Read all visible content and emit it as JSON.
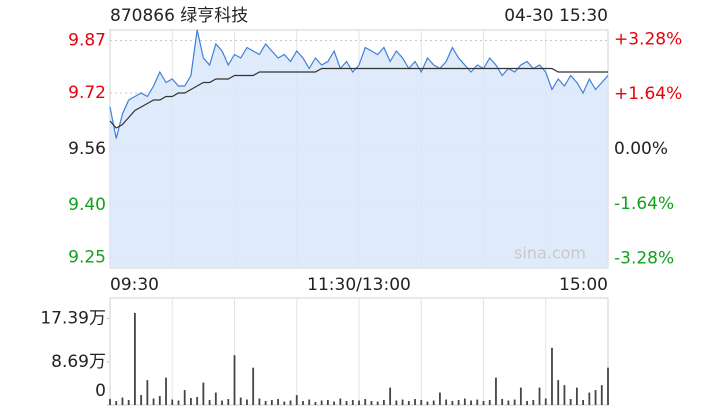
{
  "chart_data": [
    {
      "type": "line",
      "title": "870866 绿亨科技",
      "timestamp": "04-30 15:30",
      "watermark": "sina.com",
      "categories": [
        "09:30",
        null,
        null,
        null,
        null,
        null,
        null,
        null,
        null,
        null,
        null,
        null,
        null,
        null,
        null,
        null,
        null,
        null,
        null,
        null,
        null,
        null,
        null,
        null,
        null,
        null,
        null,
        null,
        null,
        null,
        null,
        null,
        null,
        null,
        null,
        null,
        null,
        null,
        null,
        null,
        "11:30/13:00",
        null,
        null,
        null,
        null,
        null,
        null,
        null,
        null,
        null,
        null,
        null,
        null,
        null,
        null,
        null,
        null,
        null,
        null,
        null,
        null,
        null,
        null,
        null,
        null,
        null,
        null,
        null,
        null,
        null,
        null,
        null,
        null,
        null,
        null,
        null,
        null,
        null,
        null,
        null,
        "15:00"
      ],
      "series": [
        {
          "color": "#3f7fd8",
          "values": [
            9.68,
            9.59,
            9.66,
            9.7,
            9.71,
            9.72,
            9.71,
            9.74,
            9.78,
            9.75,
            9.76,
            9.74,
            9.74,
            9.77,
            9.9,
            9.82,
            9.8,
            9.86,
            9.84,
            9.8,
            9.83,
            9.82,
            9.85,
            9.84,
            9.83,
            9.86,
            9.84,
            9.82,
            9.83,
            9.81,
            9.84,
            9.82,
            9.79,
            9.82,
            9.8,
            9.81,
            9.84,
            9.79,
            9.81,
            9.78,
            9.8,
            9.85,
            9.84,
            9.83,
            9.85,
            9.81,
            9.84,
            9.82,
            9.79,
            9.81,
            9.78,
            9.82,
            9.8,
            9.79,
            9.81,
            9.85,
            9.82,
            9.8,
            9.78,
            9.8,
            9.79,
            9.82,
            9.8,
            9.77,
            9.79,
            9.78,
            9.8,
            9.81,
            9.79,
            9.8,
            9.78,
            9.73,
            9.76,
            9.74,
            9.77,
            9.75,
            9.72,
            9.76,
            9.73,
            9.75,
            9.77
          ]
        },
        {
          "color": "#333333",
          "values": [
            9.64,
            9.62,
            9.63,
            9.65,
            9.67,
            9.68,
            9.69,
            9.7,
            9.7,
            9.71,
            9.71,
            9.72,
            9.72,
            9.73,
            9.74,
            9.75,
            9.75,
            9.76,
            9.76,
            9.76,
            9.77,
            9.77,
            9.77,
            9.77,
            9.78,
            9.78,
            9.78,
            9.78,
            9.78,
            9.78,
            9.78,
            9.78,
            9.78,
            9.78,
            9.79,
            9.79,
            9.79,
            9.79,
            9.79,
            9.79,
            9.79,
            9.79,
            9.79,
            9.79,
            9.79,
            9.79,
            9.79,
            9.79,
            9.79,
            9.79,
            9.79,
            9.79,
            9.79,
            9.79,
            9.79,
            9.79,
            9.79,
            9.79,
            9.79,
            9.79,
            9.79,
            9.79,
            9.79,
            9.79,
            9.79,
            9.79,
            9.79,
            9.79,
            9.79,
            9.79,
            9.79,
            9.79,
            9.78,
            9.78,
            9.78,
            9.78,
            9.78,
            9.78,
            9.78,
            9.78,
            9.78
          ]
        }
      ],
      "ylim": [
        9.22,
        9.9
      ],
      "yticks": [
        9.87,
        9.72,
        9.56,
        {
          "value": 9.4,
          "label": "9.40"
        },
        9.25
      ],
      "y2lim": [
        -3.56,
        3.56
      ],
      "y2ticks": [
        {
          "value": 3.28,
          "label": "+3.28%"
        },
        {
          "value": 1.64,
          "label": "+1.64%"
        },
        {
          "value": 0,
          "label": "0.00%"
        },
        {
          "value": -1.64,
          "label": "-1.64%"
        },
        {
          "value": -3.28,
          "label": "-3.28%"
        }
      ],
      "up_color": "#e8000b",
      "down_color": "#11a11c",
      "flat_color": "#222222",
      "fill_color": "#d9e6fa",
      "grid": true
    },
    {
      "type": "bar",
      "color": "#444444",
      "values": [
        1.2,
        0.8,
        1.5,
        1.0,
        18.5,
        2.0,
        5.0,
        1.3,
        1.8,
        5.5,
        1.1,
        0.9,
        3.0,
        1.4,
        1.6,
        4.5,
        1.0,
        2.5,
        0.9,
        1.2,
        10.0,
        1.5,
        1.1,
        7.5,
        1.3,
        0.8,
        1.0,
        1.2,
        0.7,
        0.9,
        2.0,
        0.8,
        1.1,
        0.6,
        0.9,
        1.0,
        0.7,
        1.3,
        0.8,
        1.0,
        0.9,
        1.2,
        0.8,
        0.7,
        1.0,
        3.5,
        0.9,
        1.1,
        0.8,
        1.2,
        1.0,
        0.7,
        0.9,
        2.5,
        1.1,
        0.8,
        1.0,
        1.3,
        0.9,
        1.1,
        0.8,
        1.0,
        5.5,
        1.2,
        0.9,
        1.1,
        3.5,
        0.8,
        1.0,
        3.5,
        1.3,
        11.5,
        5.0,
        4.0,
        1.2,
        3.5,
        1.0,
        2.5,
        3.0,
        4.0,
        7.5
      ],
      "ylim": [
        0,
        21.5
      ],
      "yticks": [
        {
          "value": 17.39,
          "label": "17.39万"
        },
        {
          "value": 8.69,
          "label": "8.69万"
        },
        0
      ]
    }
  ]
}
